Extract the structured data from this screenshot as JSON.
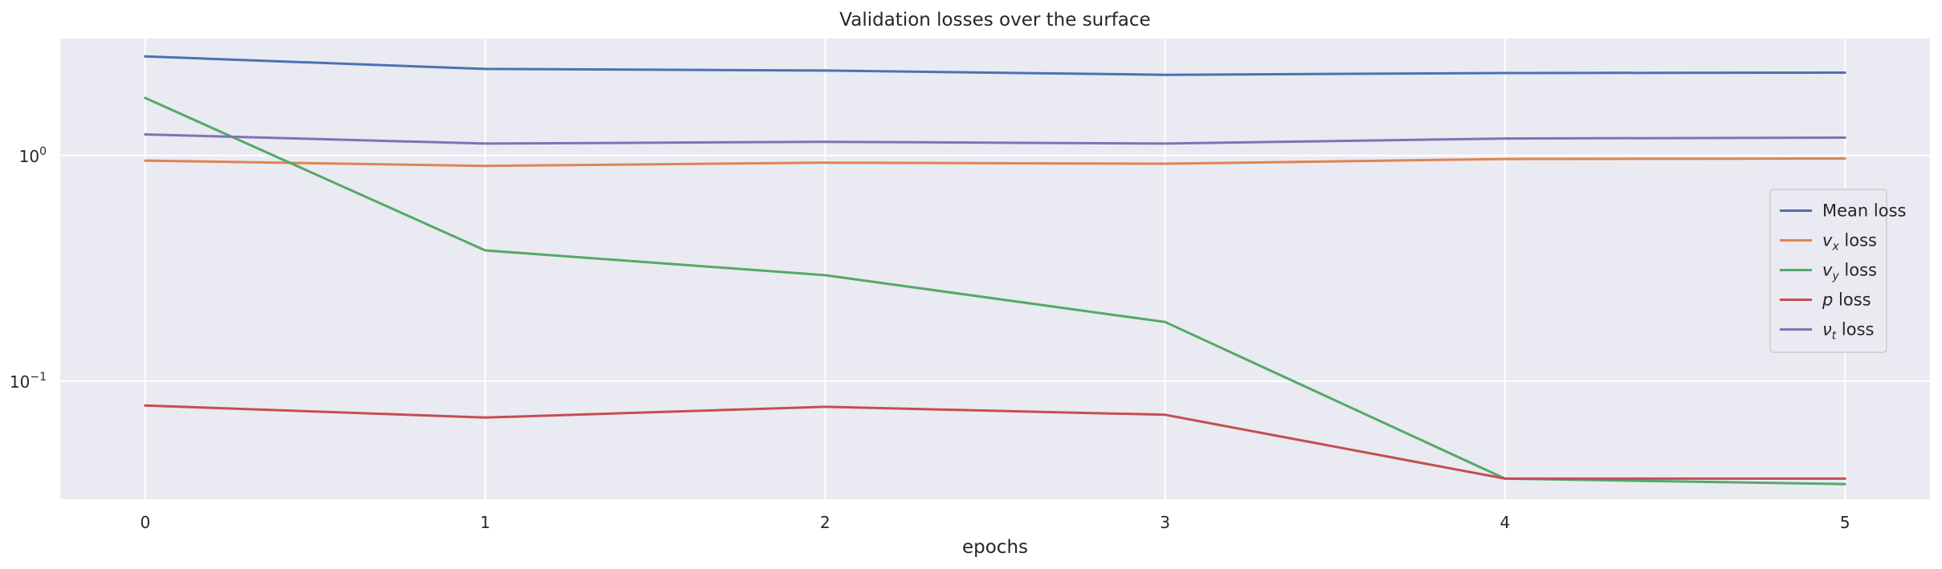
{
  "chart_data": {
    "type": "line",
    "title": "Validation losses over the surface",
    "xlabel": "epochs",
    "ylabel": "",
    "yscale": "log",
    "xlim": [
      -0.25,
      5.25
    ],
    "ylim": [
      0.03,
      3.3
    ],
    "x": [
      0,
      1,
      2,
      3,
      4,
      5
    ],
    "x_ticks": [
      "0",
      "1",
      "2",
      "3",
      "4",
      "5"
    ],
    "y_ticks": [
      {
        "value": 1,
        "base": "10",
        "exp": "0"
      },
      {
        "value": 0.1,
        "base": "10",
        "exp": "−1"
      }
    ],
    "grid": true,
    "legend_position": "center-right",
    "background": "#eaeaf2",
    "series": [
      {
        "name": "Mean loss",
        "label_var": "",
        "label_sub": "",
        "label_suffix": "Mean loss",
        "color": "#4c72b0",
        "values": [
          2.75,
          2.42,
          2.38,
          2.28,
          2.32,
          2.33
        ]
      },
      {
        "name": "v_x loss",
        "label_var": "v",
        "label_sub": "x",
        "label_suffix": " loss",
        "color": "#dd8452",
        "values": [
          0.95,
          0.9,
          0.93,
          0.92,
          0.965,
          0.97
        ]
      },
      {
        "name": "v_y loss",
        "label_var": "v",
        "label_sub": "y",
        "label_suffix": " loss",
        "color": "#55a868",
        "values": [
          1.8,
          0.38,
          0.295,
          0.183,
          0.037,
          0.035
        ]
      },
      {
        "name": "p loss",
        "label_var": "p",
        "label_sub": "",
        "label_suffix": " loss",
        "color": "#c44e52",
        "values": [
          0.078,
          0.069,
          0.077,
          0.071,
          0.037,
          0.037
        ]
      },
      {
        "name": "ν_t loss",
        "label_var": "ν",
        "label_sub": "t",
        "label_suffix": " loss",
        "color": "#8172b3",
        "values": [
          1.24,
          1.13,
          1.15,
          1.13,
          1.19,
          1.2
        ]
      }
    ]
  }
}
